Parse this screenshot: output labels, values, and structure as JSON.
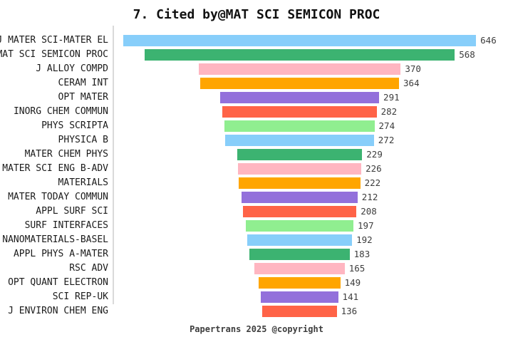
{
  "chart_data": {
    "type": "bar",
    "orientation": "horizontal-centered-funnel",
    "title": "7. Cited by@MAT SCI SEMICON PROC",
    "footer": "Papertrans 2025 @copyright",
    "categories": [
      "J MATER SCI-MATER EL",
      "MAT SCI SEMICON PROC",
      "J ALLOY COMPD",
      "CERAM INT",
      "OPT MATER",
      "INORG CHEM COMMUN",
      "PHYS SCRIPTA",
      "PHYSICA B",
      "MATER CHEM PHYS",
      "MATER SCI ENG B-ADV",
      "MATERIALS",
      "MATER TODAY COMMUN",
      "APPL SURF SCI",
      "SURF INTERFACES",
      "NANOMATERIALS-BASEL",
      "APPL PHYS A-MATER",
      "RSC ADV",
      "OPT QUANT ELECTRON",
      "SCI REP-UK",
      "J ENVIRON CHEM ENG"
    ],
    "values": [
      646,
      568,
      370,
      364,
      291,
      282,
      274,
      272,
      229,
      226,
      222,
      212,
      208,
      197,
      192,
      183,
      165,
      149,
      141,
      136
    ],
    "value_max": 646,
    "palette": [
      "#87CEFA",
      "#3CB371",
      "#FFB6C1",
      "#FFA500",
      "#9370DB",
      "#FF6347",
      "#90EE90"
    ],
    "axis_line_color": "#d9d9d9",
    "grid": "off",
    "legend": "none"
  }
}
